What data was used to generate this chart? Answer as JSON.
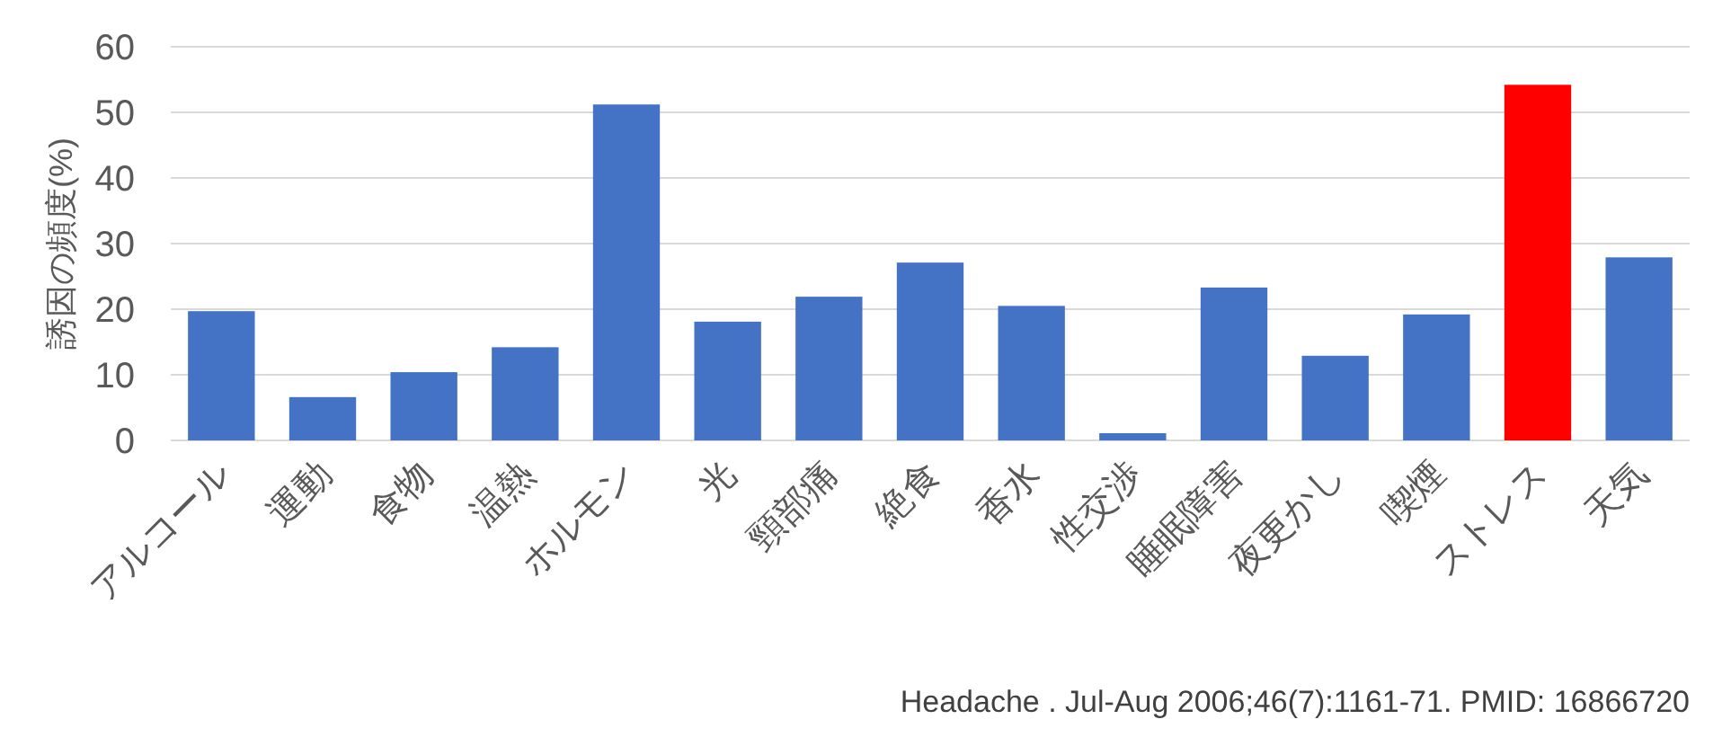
{
  "chart_data": {
    "type": "bar",
    "ylabel": "誘因の頻度(%)",
    "categories": [
      "アルコール",
      "運動",
      "食物",
      "温熱",
      "ホルモン",
      "光",
      "頸部痛",
      "絶食",
      "香水",
      "性交渉",
      "睡眠障害",
      "夜更かし",
      "喫煙",
      "ストレス",
      "天気"
    ],
    "values": [
      19.7,
      6.6,
      10.4,
      14.2,
      51.2,
      18.1,
      21.9,
      27.1,
      20.5,
      1.1,
      23.3,
      12.9,
      19.2,
      54.2,
      27.9
    ],
    "colors": [
      "#4472c4",
      "#4472c4",
      "#4472c4",
      "#4472c4",
      "#4472c4",
      "#4472c4",
      "#4472c4",
      "#4472c4",
      "#4472c4",
      "#4472c4",
      "#4472c4",
      "#4472c4",
      "#4472c4",
      "#ff0000",
      "#4472c4"
    ],
    "ylim": [
      0,
      60
    ],
    "yticks": [
      0,
      10,
      20,
      30,
      40,
      50,
      60
    ],
    "grid": "y",
    "annotations": [
      "Headache . Jul-Aug 2006;46(7):1161-71. PMID: 16866720"
    ]
  }
}
